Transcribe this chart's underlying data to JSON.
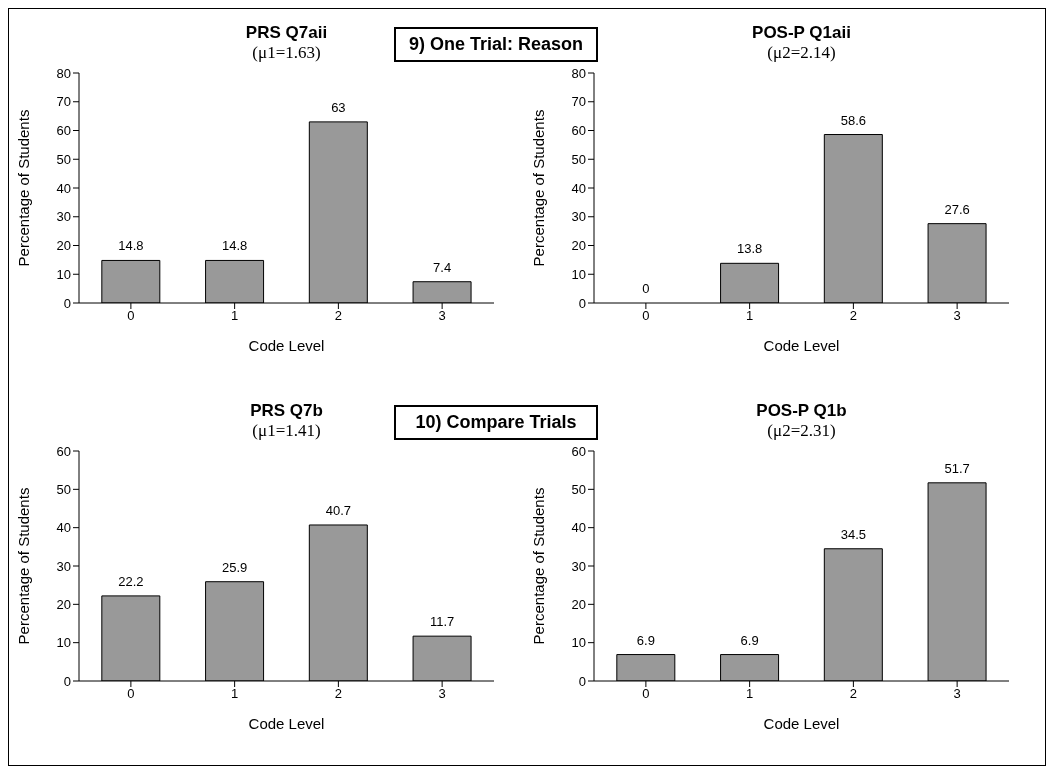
{
  "chart_data": [
    {
      "type": "bar",
      "title": "PRS Q7aii",
      "subtitle": "(μ1=1.63)",
      "annotations": [
        "9) One Trial: Reason"
      ],
      "xlabel": "Code Level",
      "ylabel": "Percentage of Students",
      "categories": [
        "0",
        "1",
        "2",
        "3"
      ],
      "values": [
        14.8,
        14.8,
        63,
        7.4
      ],
      "color": "#999999",
      "ylim": [
        0,
        80
      ],
      "yticks": [
        0,
        10,
        20,
        30,
        40,
        50,
        60,
        70,
        80
      ],
      "data_labels": true
    },
    {
      "type": "bar",
      "title": "POS-P Q1aii",
      "subtitle": "(μ2=2.14)",
      "xlabel": "Code Level",
      "ylabel": "Percentage of Students",
      "categories": [
        "0",
        "1",
        "2",
        "3"
      ],
      "values": [
        0,
        13.8,
        58.6,
        27.6
      ],
      "color": "#999999",
      "ylim": [
        0,
        80
      ],
      "yticks": [
        0,
        10,
        20,
        30,
        40,
        50,
        60,
        70,
        80
      ],
      "data_labels": true
    },
    {
      "type": "bar",
      "title": "PRS Q7b",
      "subtitle": "(μ1=1.41)",
      "annotations": [
        "10) Compare Trials"
      ],
      "xlabel": "Code Level",
      "ylabel": "Percentage of Students",
      "categories": [
        "0",
        "1",
        "2",
        "3"
      ],
      "values": [
        22.2,
        25.9,
        40.7,
        11.7
      ],
      "color": "#999999",
      "ylim": [
        0,
        60
      ],
      "yticks": [
        0,
        10,
        20,
        30,
        40,
        50,
        60
      ],
      "data_labels": true
    },
    {
      "type": "bar",
      "title": "POS-P Q1b",
      "subtitle": "(μ2=2.31)",
      "xlabel": "Code Level",
      "ylabel": "Percentage of Students",
      "categories": [
        "0",
        "1",
        "2",
        "3"
      ],
      "values": [
        6.9,
        6.9,
        34.5,
        51.7
      ],
      "color": "#999999",
      "ylim": [
        0,
        60
      ],
      "yticks": [
        0,
        10,
        20,
        30,
        40,
        50,
        60
      ],
      "data_labels": true
    }
  ]
}
